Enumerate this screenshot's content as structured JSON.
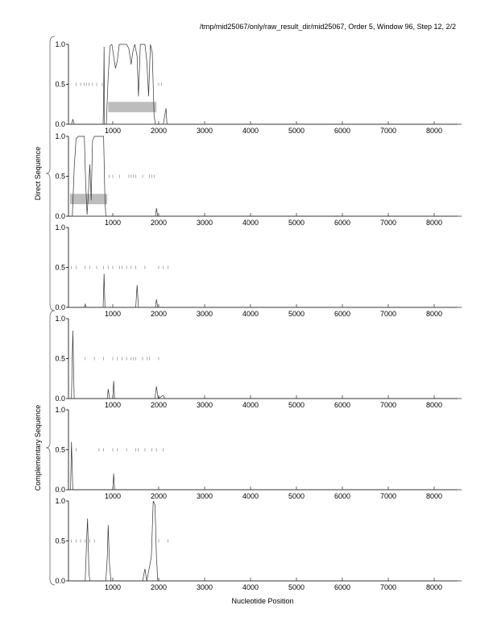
{
  "chart_data": {
    "type": "line",
    "title": "/tmp/mid25067/only/raw_result_dir/mid25067, Order 5, Window 96, Step 12, 2/2",
    "xlabel": "Nucleotide Position",
    "xlim": [
      0,
      8600
    ],
    "ylim": [
      0,
      1
    ],
    "xticks": [
      "1000",
      "2000",
      "3000",
      "4000",
      "5000",
      "6000",
      "7000",
      "8000"
    ],
    "xtick_values": [
      1000,
      2000,
      3000,
      4000,
      5000,
      6000,
      7000,
      8000
    ],
    "yticks": [
      "0.0",
      "0.5",
      "1.0"
    ],
    "ytick_values": [
      0,
      0.5,
      1
    ],
    "groups": [
      {
        "label": "Direct Sequence",
        "panels": [
          0,
          1,
          2
        ]
      },
      {
        "label": "Complementary Sequence",
        "panels": [
          3,
          4,
          5
        ]
      }
    ],
    "panels": [
      {
        "series": [
          [
            0,
            0
          ],
          [
            100,
            0
          ],
          [
            130,
            0.06
          ],
          [
            160,
            0
          ],
          [
            790,
            0
          ],
          [
            800,
            0.3
          ],
          [
            810,
            0.97
          ],
          [
            820,
            0
          ],
          [
            860,
            0
          ],
          [
            900,
            0.6
          ],
          [
            940,
            0.98
          ],
          [
            980,
            1.0
          ],
          [
            1020,
            0.85
          ],
          [
            1060,
            0.7
          ],
          [
            1100,
            0.8
          ],
          [
            1140,
            1.0
          ],
          [
            1300,
            1.0
          ],
          [
            1350,
            0.95
          ],
          [
            1400,
            0.75
          ],
          [
            1440,
            0.92
          ],
          [
            1480,
            1.0
          ],
          [
            1530,
            0.85
          ],
          [
            1560,
            0.35
          ],
          [
            1600,
            1.0
          ],
          [
            1700,
            1.0
          ],
          [
            1740,
            0.8
          ],
          [
            1780,
            0.35
          ],
          [
            1820,
            1.0
          ],
          [
            1860,
            0.9
          ],
          [
            1900,
            0.1
          ],
          [
            1930,
            0
          ],
          [
            2100,
            0
          ],
          [
            2130,
            0.1
          ],
          [
            2160,
            0.2
          ],
          [
            2180,
            0
          ],
          [
            8600,
            0
          ]
        ],
        "stop_codons": [
          200,
          300,
          380,
          430,
          480,
          560,
          650,
          770,
          2000,
          2060
        ],
        "orf_boxes": [
          [
            900,
            1950
          ]
        ]
      },
      {
        "series": [
          [
            0,
            0
          ],
          [
            120,
            0
          ],
          [
            160,
            0.6
          ],
          [
            200,
            0.97
          ],
          [
            250,
            1.0
          ],
          [
            380,
            1.0
          ],
          [
            410,
            0.4
          ],
          [
            440,
            0.02
          ],
          [
            470,
            0.3
          ],
          [
            500,
            0.65
          ],
          [
            530,
            0.2
          ],
          [
            560,
            0.95
          ],
          [
            600,
            1.0
          ],
          [
            800,
            1.0
          ],
          [
            830,
            0.2
          ],
          [
            850,
            0
          ],
          [
            1930,
            0
          ],
          [
            1950,
            0.1
          ],
          [
            1980,
            0
          ],
          [
            8600,
            0
          ]
        ],
        "stop_codons": [
          920,
          1000,
          1150,
          1350,
          1400,
          1450,
          1500,
          1650,
          1800,
          1850,
          1900
        ],
        "orf_boxes": [
          [
            70,
            880
          ]
        ]
      },
      {
        "series": [
          [
            0,
            0
          ],
          [
            380,
            0
          ],
          [
            400,
            0.04
          ],
          [
            420,
            0
          ],
          [
            790,
            0
          ],
          [
            810,
            0.42
          ],
          [
            830,
            0
          ],
          [
            1500,
            0
          ],
          [
            1530,
            0.28
          ],
          [
            1560,
            0
          ],
          [
            1930,
            0
          ],
          [
            1950,
            0.1
          ],
          [
            1980,
            0
          ],
          [
            8600,
            0
          ]
        ],
        "stop_codons": [
          100,
          200,
          400,
          500,
          650,
          800,
          900,
          1000,
          1150,
          1200,
          1300,
          1400,
          1500,
          1700,
          2000,
          2100,
          2200
        ],
        "orf_boxes": []
      },
      {
        "series": [
          [
            0,
            0
          ],
          [
            100,
            0
          ],
          [
            130,
            0.85
          ],
          [
            160,
            0
          ],
          [
            880,
            0
          ],
          [
            900,
            0.12
          ],
          [
            930,
            0
          ],
          [
            1000,
            0
          ],
          [
            1020,
            0.22
          ],
          [
            1040,
            0
          ],
          [
            1920,
            0
          ],
          [
            1950,
            0.15
          ],
          [
            1990,
            0
          ],
          [
            2100,
            0.04
          ],
          [
            2130,
            0
          ],
          [
            8600,
            0
          ]
        ],
        "stop_codons": [
          400,
          600,
          800,
          1000,
          1100,
          1200,
          1300,
          1400,
          1450,
          1500,
          1650,
          1750,
          1800,
          2000
        ],
        "orf_boxes": []
      },
      {
        "series": [
          [
            0,
            0
          ],
          [
            80,
            0
          ],
          [
            100,
            0.6
          ],
          [
            130,
            0
          ],
          [
            1000,
            0
          ],
          [
            1020,
            0.2
          ],
          [
            1040,
            0
          ],
          [
            8600,
            0
          ]
        ],
        "stop_codons": [
          100,
          200,
          700,
          800,
          1000,
          1100,
          1300,
          1500,
          1550,
          1700,
          1850,
          1950,
          2100
        ],
        "orf_boxes": []
      },
      {
        "series": [
          [
            0,
            0
          ],
          [
            400,
            0
          ],
          [
            430,
            0.5
          ],
          [
            450,
            0.78
          ],
          [
            480,
            0.1
          ],
          [
            500,
            0
          ],
          [
            850,
            0
          ],
          [
            880,
            0.3
          ],
          [
            900,
            0.7
          ],
          [
            930,
            0.2
          ],
          [
            960,
            0
          ],
          [
            1650,
            0
          ],
          [
            1700,
            0.15
          ],
          [
            1740,
            0
          ],
          [
            1840,
            0.3
          ],
          [
            1880,
            1.0
          ],
          [
            1920,
            0.95
          ],
          [
            1950,
            0.3
          ],
          [
            1980,
            0
          ],
          [
            8600,
            0
          ]
        ],
        "stop_codons": [
          100,
          200,
          300,
          400,
          500,
          600,
          2000,
          2200
        ],
        "orf_boxes": []
      }
    ]
  }
}
